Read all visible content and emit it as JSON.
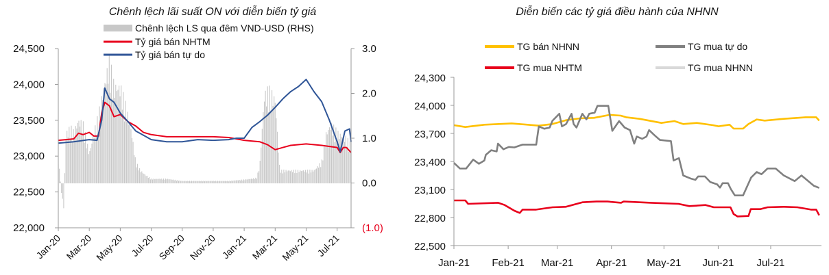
{
  "chart_data": [
    {
      "type": "line",
      "title": "Chênh lệch lãi suất ON với diễn biến tỷ giá",
      "x_unit": "months since Jan-20",
      "x_tick_labels": [
        "Jan-20",
        "Mar-20",
        "May-20",
        "Jul-20",
        "Sep-20",
        "Nov-20",
        "Jan-21",
        "Mar-21",
        "May-21",
        "Jul-21"
      ],
      "x_tick_positions": [
        0,
        2,
        4,
        6,
        8,
        10,
        12,
        14,
        16,
        18
      ],
      "xlim": [
        0,
        18.9
      ],
      "ylim": [
        22000,
        24500
      ],
      "y_tick_labels": [
        "22,000",
        "22,500",
        "23,000",
        "23,500",
        "24,000",
        "24,500"
      ],
      "y_ticks": [
        22000,
        22500,
        23000,
        23500,
        24000,
        24500
      ],
      "y2lim": [
        -1,
        3
      ],
      "y2_tick_labels": [
        "(1.0)",
        "0.0",
        "1.0",
        "2.0",
        "3.0"
      ],
      "y2_ticks": [
        -1,
        0,
        1,
        2,
        3
      ],
      "y2_negative_color": "#e8001c",
      "legend": [
        "Chênh lệch LS qua đêm VND-USD (RHS)",
        "Tỷ giá bán NHTM",
        "Tỷ giá bán tự do"
      ],
      "legend_position": "top-left",
      "series": [
        {
          "name": "Chênh lệch LS qua đêm VND-USD (RHS)",
          "type": "bar",
          "axis": "right",
          "color": "#c8c8c8",
          "x": [
            0,
            0.2,
            0.35,
            0.5,
            0.8,
            1,
            1.3,
            1.6,
            2,
            2.3,
            2.6,
            3,
            3.3,
            3.6,
            4,
            4.3,
            4.7,
            5,
            5.3,
            5.6,
            6,
            7,
            8,
            9,
            10,
            11,
            12,
            12.8,
            13,
            13.3,
            13.6,
            14,
            14.3,
            14.6,
            15,
            16,
            16.5,
            17,
            17.3,
            17.6,
            18,
            18.5,
            18.9
          ],
          "y": [
            0.6,
            -0.2,
            -0.6,
            1.2,
            1.3,
            1.2,
            1.5,
            1.4,
            0.7,
            1.2,
            1.6,
            2.4,
            2.9,
            2.3,
            2.3,
            1.9,
            1.3,
            0.5,
            0.3,
            0.2,
            0.1,
            0.1,
            0.05,
            0.05,
            0.05,
            0.05,
            0.08,
            0.12,
            0.4,
            2.1,
            2.2,
            2.0,
            0.3,
            0.3,
            0.3,
            0.3,
            0.3,
            0.5,
            1.2,
            1.4,
            1.2,
            1.1,
            0.9
          ]
        },
        {
          "name": "Tỷ giá bán NHTM",
          "type": "line",
          "axis": "left",
          "color": "#e8001c",
          "x": [
            0,
            0.5,
            1,
            1.3,
            1.6,
            2,
            2.3,
            2.6,
            2.8,
            3,
            3.3,
            3.6,
            4,
            4.5,
            5,
            5.5,
            6,
            7,
            8,
            9,
            10,
            11,
            12,
            13,
            13.5,
            14,
            14.5,
            15,
            16,
            17,
            18,
            18.2,
            18.4,
            18.6,
            18.9
          ],
          "y": [
            23220,
            23230,
            23240,
            23320,
            23300,
            23330,
            23280,
            23280,
            23600,
            23750,
            23700,
            23550,
            23580,
            23480,
            23420,
            23330,
            23300,
            23270,
            23270,
            23270,
            23270,
            23260,
            23220,
            23200,
            23160,
            23090,
            23120,
            23150,
            23170,
            23150,
            23120,
            23050,
            23120,
            23120,
            23050
          ]
        },
        {
          "name": "Tỷ giá bán tự do",
          "type": "line",
          "axis": "left",
          "color": "#2f5597",
          "x": [
            0,
            1,
            2,
            2.5,
            2.8,
            3,
            3.3,
            3.6,
            4,
            4.5,
            5,
            5.5,
            6,
            7,
            8,
            9,
            10,
            11,
            11.5,
            12,
            12.5,
            13,
            13.5,
            14,
            14.5,
            15,
            15.5,
            16,
            16.5,
            17,
            17.5,
            18,
            18.2,
            18.5,
            18.8,
            18.9
          ],
          "y": [
            23180,
            23200,
            23230,
            23220,
            23500,
            23950,
            23800,
            23750,
            23600,
            23480,
            23350,
            23290,
            23230,
            23200,
            23200,
            23230,
            23220,
            23230,
            23250,
            23250,
            23400,
            23480,
            23570,
            23680,
            23800,
            23900,
            23970,
            24070,
            23900,
            23760,
            23500,
            23200,
            23060,
            23350,
            23380,
            23200
          ]
        }
      ]
    },
    {
      "type": "line",
      "title": "Diễn biến các tỷ giá điều hành của NHNN",
      "x_unit": "days since Jan-21",
      "x_tick_labels": [
        "Jan-21",
        "Feb-21",
        "Mar-21",
        "Apr-21",
        "May-21",
        "Jun-21",
        "Jul-21"
      ],
      "x_tick_positions": [
        0,
        31,
        59,
        90,
        120,
        151,
        181
      ],
      "xlim": [
        0,
        210
      ],
      "ylim": [
        22500,
        24300
      ],
      "y_tick_labels": [
        "22,500",
        "22,800",
        "23,100",
        "23,400",
        "23,700",
        "24,000",
        "24,300"
      ],
      "y_ticks": [
        22500,
        22800,
        23100,
        23400,
        23700,
        24000,
        24300
      ],
      "legend": [
        "TG bán NHNN",
        "TG mua tự do",
        "TG mua NHTM",
        "TG mua NHNN"
      ],
      "legend_position": "top",
      "series": [
        {
          "name": "TG bán NHNN",
          "color": "#ffc000",
          "x": [
            0,
            6.5,
            17.4,
            33,
            48.5,
            56.3,
            64,
            72,
            80,
            89,
            95.3,
            98.4,
            106,
            118.5,
            126,
            131,
            138.8,
            148,
            151.2,
            157.5,
            159.8,
            165.2,
            168.3,
            173,
            177.6,
            188.5,
            201,
            207,
            208.7
          ],
          "y": [
            23788,
            23768,
            23793,
            23807,
            23783,
            23800,
            23841,
            23861,
            23866,
            23898,
            23890,
            23873,
            23856,
            23812,
            23832,
            23800,
            23812,
            23788,
            23776,
            23793,
            23751,
            23751,
            23800,
            23849,
            23837,
            23856,
            23873,
            23873,
            23837
          ]
        },
        {
          "name": "TG mua tự do",
          "color": "#808080",
          "x": [
            0,
            3.4,
            7,
            11,
            14.3,
            17.4,
            18.2,
            21.3,
            24.4,
            25.2,
            28.3,
            31.4,
            34.5,
            39.2,
            47,
            48.5,
            51.6,
            54.7,
            56.3,
            60.2,
            61.7,
            64.1,
            67.2,
            68.4,
            70,
            73.4,
            75.7,
            77.3,
            80.4,
            82,
            88.2,
            90.5,
            94.4,
            97.5,
            100.6,
            103,
            104.5,
            107.6,
            110,
            111.5,
            114.6,
            117.7,
            124,
            125.5,
            128.6,
            131,
            135.6,
            138,
            139.5,
            143.4,
            146.5,
            150.4,
            152,
            153.5,
            156.6,
            158.2,
            160.5,
            165.2,
            169.8,
            173,
            175.7,
            179.2,
            183.8,
            188.5,
            194.7,
            198.6,
            205.6,
            208.7
          ],
          "y": [
            23385,
            23325,
            23325,
            23420,
            23375,
            23410,
            23470,
            23520,
            23507,
            23590,
            23530,
            23555,
            23550,
            23580,
            23580,
            23775,
            23750,
            23762,
            23835,
            23910,
            23775,
            23800,
            23910,
            23800,
            23762,
            23910,
            23850,
            23910,
            23922,
            23995,
            23995,
            23727,
            23832,
            23763,
            23735,
            23590,
            23666,
            23642,
            23666,
            23735,
            23680,
            23630,
            23617,
            23410,
            23435,
            23250,
            23215,
            23203,
            23240,
            23240,
            23180,
            23155,
            23120,
            23167,
            23167,
            23105,
            23036,
            23036,
            23227,
            23287,
            23263,
            23325,
            23325,
            23250,
            23190,
            23250,
            23140,
            23117
          ]
        },
        {
          "name": "TG mua NHTM",
          "color": "#e8001c",
          "x": [
            0,
            6.5,
            8.1,
            25.2,
            29,
            34.5,
            37.6,
            39.2,
            47,
            56.3,
            64,
            73.4,
            81.5,
            87.7,
            95.5,
            97,
            112.5,
            128.3,
            134.5,
            143.8,
            148.5,
            158,
            159.8,
            162,
            168.3,
            169.6,
            175,
            179.2,
            188.5,
            196.3,
            204,
            207,
            208.7
          ],
          "y": [
            22983,
            22983,
            22946,
            22958,
            22934,
            22873,
            22849,
            22885,
            22885,
            22910,
            22915,
            22963,
            22971,
            22971,
            22958,
            22971,
            22958,
            22946,
            22922,
            22934,
            22910,
            22910,
            22837,
            22812,
            22817,
            22890,
            22890,
            22910,
            22915,
            22910,
            22885,
            22885,
            22824
          ]
        },
        {
          "name": "TG mua NHNN",
          "color": "#d9d9d9",
          "x": [],
          "y": []
        }
      ]
    }
  ]
}
